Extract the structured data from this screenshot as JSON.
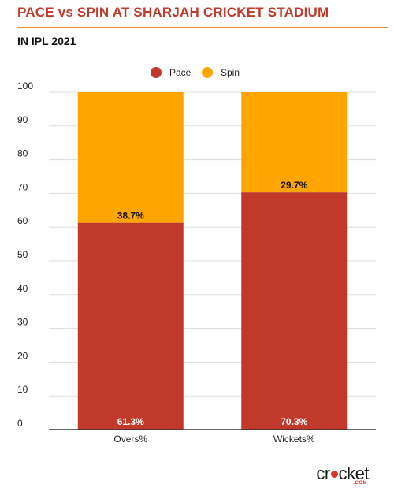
{
  "header": {
    "title": "PACE vs SPIN AT SHARJAH CRICKET STADIUM",
    "subtitle": "IN IPL 2021"
  },
  "logo": {
    "text_main": "cricket",
    "text_sub": ".com"
  },
  "colors": {
    "pace": "#c0392b",
    "spin": "#ffa500",
    "accent": "#e98a26",
    "grid": "#dddddd"
  },
  "chart_data": {
    "type": "bar",
    "stacked": true,
    "title": "PACE vs SPIN AT SHARJAH CRICKET STADIUM",
    "subtitle": "IN IPL 2021",
    "categories": [
      "Overs%",
      "Wickets%"
    ],
    "series": [
      {
        "name": "Pace",
        "values": [
          61.3,
          70.3
        ],
        "labels": [
          "61.3%",
          "70.3%"
        ],
        "color": "#c0392b"
      },
      {
        "name": "Spin",
        "values": [
          38.7,
          29.7
        ],
        "labels": [
          "38.7%",
          "29.7%"
        ],
        "color": "#ffa500"
      }
    ],
    "ylim": [
      0,
      100
    ],
    "yticks": [
      0,
      10,
      20,
      30,
      40,
      50,
      60,
      70,
      80,
      90,
      100
    ],
    "grid": true,
    "legend": "top-center",
    "xlabel": "",
    "ylabel": ""
  }
}
